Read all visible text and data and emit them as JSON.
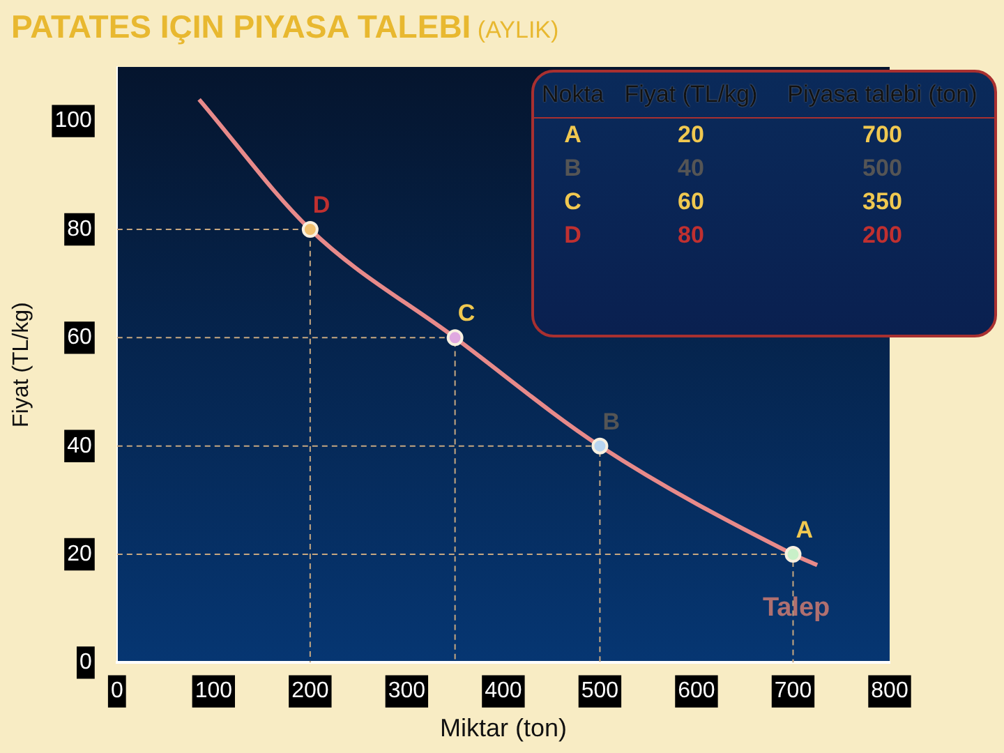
{
  "chart_data": {
    "type": "line",
    "title": "PATATES IÇIN PIYASA TALEBI",
    "subtitle": "(AYLIK)",
    "xlabel": "Miktar (ton)",
    "ylabel": "Fiyat (TL/kg)",
    "xlim": [
      0,
      800
    ],
    "xticks": [
      0,
      100,
      200,
      300,
      400,
      500,
      600,
      700,
      800
    ],
    "ylim": [
      0,
      110
    ],
    "yticks": [
      0,
      20,
      40,
      60,
      80,
      100
    ],
    "grid": false,
    "legend": false,
    "marker": "none",
    "series": [
      {
        "color": "#c8a880",
        "x": [
          0,
          700,
          700
        ],
        "values": [
          20,
          20,
          0
        ],
        "line_style": "dashed"
      },
      {
        "color": "#c8a880",
        "x": [
          0,
          500,
          500
        ],
        "values": [
          40,
          40,
          0
        ],
        "line_style": "dashed"
      },
      {
        "color": "#c8a880",
        "x": [
          0,
          350,
          350
        ],
        "values": [
          60,
          60,
          0
        ],
        "line_style": "dashed"
      },
      {
        "color": "#c8a880",
        "x": [
          0,
          200,
          200
        ],
        "values": [
          80,
          80,
          0
        ],
        "line_style": "dashed"
      },
      {
        "color": "#e88a8a",
        "x": [
          85,
          200,
          350,
          500,
          700,
          725
        ],
        "values": [
          104,
          80,
          60,
          40,
          20,
          18
        ]
      },
      {
        "type": "scatter",
        "colors": [
          "#c8f0c8",
          "#b8d4f0",
          "#e0a8e0",
          "#f0c070"
        ],
        "x": [
          700,
          500,
          350,
          200
        ],
        "values": [
          20,
          40,
          60,
          80
        ],
        "marker": "circle"
      }
    ],
    "annotations": [
      {
        "text": "A",
        "x": 700,
        "y": 20
      },
      {
        "text": "B",
        "x": 500,
        "y": 40
      },
      {
        "text": "C",
        "x": 350,
        "y": 60
      },
      {
        "text": "D",
        "x": 200,
        "y": 80
      },
      {
        "text": "Talep",
        "x": 725,
        "y": 18
      },
      "Nokta",
      "Fiyat (TL/kg)",
      "Piyasa talebi (ton)",
      "A",
      "20",
      "700",
      "B",
      "40",
      "500",
      "C",
      "60",
      "350",
      "D",
      "80",
      "200"
    ]
  }
}
